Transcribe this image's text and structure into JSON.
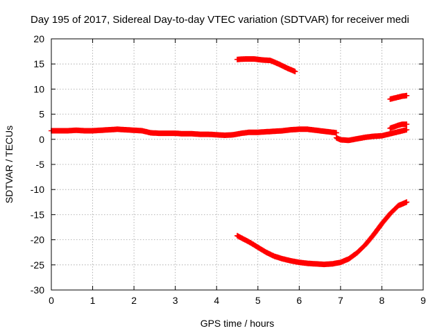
{
  "chart_data": {
    "type": "scatter",
    "title": "Day 195 of 2017, Sidereal Day-to-day VTEC variation (SDTVAR) for receiver medi",
    "xlabel": "GPS time / hours",
    "ylabel": "SDTVAR / TECUs",
    "xlim": [
      0,
      9
    ],
    "ylim": [
      -30,
      20
    ],
    "xticks": [
      0,
      1,
      2,
      3,
      4,
      5,
      6,
      7,
      8,
      9
    ],
    "yticks": [
      -30,
      -25,
      -20,
      -15,
      -10,
      -5,
      0,
      5,
      10,
      15,
      20
    ],
    "grid": true,
    "marker": "plus",
    "color": "#ff0000",
    "series": [
      {
        "x": [
          0.0,
          0.2,
          0.4,
          0.6,
          0.8,
          1.0,
          1.2,
          1.4,
          1.6,
          1.8,
          2.0,
          2.2,
          2.4,
          2.6,
          2.8,
          3.0,
          3.2,
          3.4,
          3.6,
          3.8,
          4.0,
          4.2,
          4.4,
          4.6,
          4.8,
          5.0,
          5.2,
          5.4,
          5.6,
          5.8,
          6.0,
          6.2,
          6.4,
          6.6,
          6.8,
          6.9
        ],
        "y": [
          1.7,
          1.7,
          1.7,
          1.8,
          1.7,
          1.7,
          1.8,
          1.9,
          2.0,
          1.9,
          1.8,
          1.7,
          1.3,
          1.2,
          1.2,
          1.2,
          1.1,
          1.1,
          1.0,
          1.0,
          0.9,
          0.8,
          0.9,
          1.2,
          1.4,
          1.4,
          1.5,
          1.6,
          1.7,
          1.9,
          2.0,
          2.0,
          1.8,
          1.6,
          1.4,
          1.3
        ]
      },
      {
        "x": [
          6.9,
          7.0,
          7.2,
          7.4,
          7.6,
          7.8,
          8.0,
          8.2,
          8.4,
          8.6
        ],
        "y": [
          0.3,
          -0.1,
          -0.2,
          0.1,
          0.4,
          0.6,
          0.7,
          1.1,
          1.5,
          1.9
        ]
      },
      {
        "x": [
          8.2,
          8.3,
          8.4,
          8.5,
          8.6
        ],
        "y": [
          2.2,
          2.5,
          2.8,
          3.0,
          3.0
        ]
      },
      {
        "x": [
          4.5,
          4.7,
          4.9,
          5.1,
          5.3,
          5.5,
          5.7,
          5.9
        ],
        "y": [
          15.9,
          16.0,
          16.0,
          15.8,
          15.7,
          15.0,
          14.2,
          13.5
        ]
      },
      {
        "x": [
          8.2,
          8.3,
          8.4,
          8.5,
          8.6
        ],
        "y": [
          8.0,
          8.2,
          8.4,
          8.6,
          8.7
        ]
      },
      {
        "x": [
          4.5,
          4.8,
          5.0,
          5.2,
          5.4,
          5.6,
          5.8,
          6.0,
          6.2,
          6.4,
          6.6,
          6.8,
          7.0,
          7.2,
          7.4,
          7.6,
          7.8,
          8.0,
          8.2,
          8.4,
          8.6
        ],
        "y": [
          -19.2,
          -20.5,
          -21.5,
          -22.5,
          -23.3,
          -23.8,
          -24.2,
          -24.5,
          -24.7,
          -24.8,
          -24.9,
          -24.8,
          -24.5,
          -23.8,
          -22.6,
          -21.0,
          -19.0,
          -16.8,
          -14.8,
          -13.2,
          -12.5
        ]
      }
    ]
  }
}
